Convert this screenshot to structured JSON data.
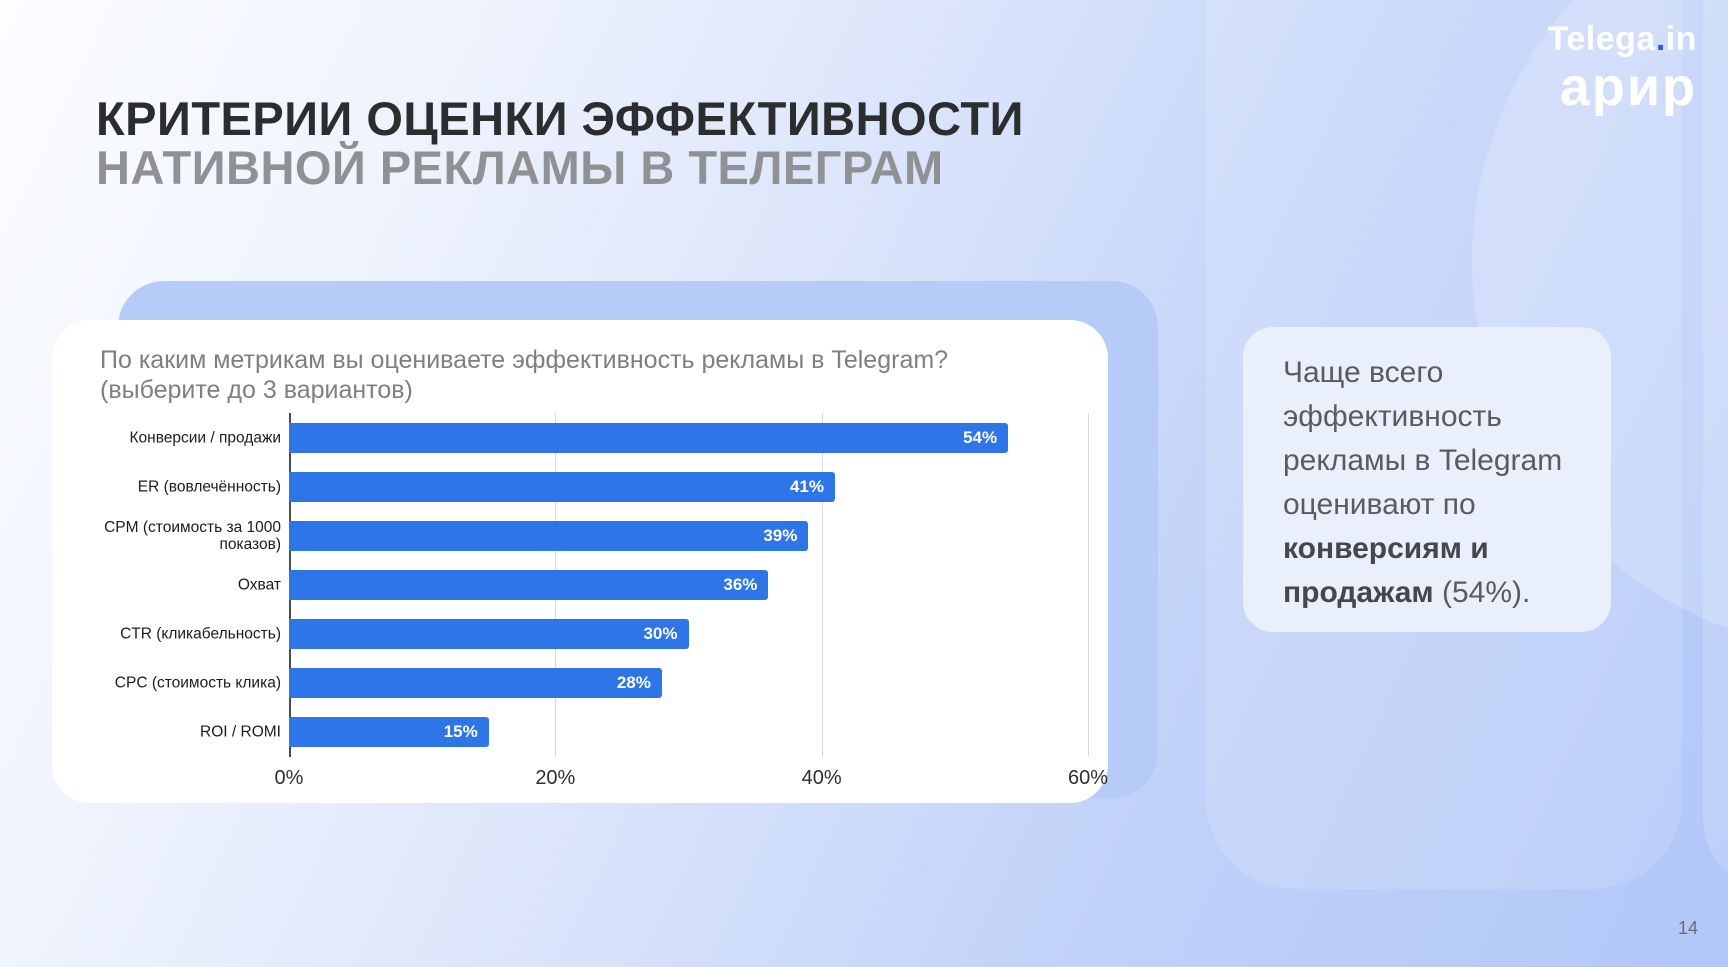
{
  "logo": {
    "brand": "Telega",
    "dot": ".",
    "tld": "in",
    "partner": "арир"
  },
  "title": {
    "line1": "КРИТЕРИИ ОЦЕНКИ ЭФФЕКТИВНОСТИ",
    "line2": "НАТИВНОЙ РЕКЛАМЫ В ТЕЛЕГРАМ"
  },
  "chart_card": {
    "question_line1": "По каким метрикам вы оцениваете эффективность рекламы в Telegram?",
    "question_line2": "(выберите до 3 вариантов)"
  },
  "chart_data": {
    "type": "bar",
    "orientation": "horizontal",
    "title": "По каким метрикам вы оцениваете эффективность рекламы в Telegram? (выберите до 3 вариантов)",
    "categories": [
      "Конверсии / продажи",
      "ER (вовлечённость)",
      "CPM (стоимость за 1000 показов)",
      "Охват",
      "CTR (кликабельность)",
      "CPC (стоимость клика)",
      "ROI / ROMI"
    ],
    "values": [
      54,
      41,
      39,
      36,
      30,
      28,
      15
    ],
    "value_labels": [
      "54%",
      "41%",
      "39%",
      "36%",
      "30%",
      "28%",
      "15%"
    ],
    "x_ticks": [
      "0%",
      "20%",
      "40%",
      "60%"
    ],
    "xlim": [
      0,
      60
    ],
    "grid": true,
    "value_label_position": "inside-end",
    "legend": "none"
  },
  "insight": {
    "segments": [
      {
        "text": "Чаще всего эффективность рекламы в Telegram оценивают по ",
        "bold": false
      },
      {
        "text": "конверсиям и продажам",
        "bold": true
      },
      {
        "text": " (54%).",
        "bold": false
      }
    ]
  },
  "page_number": "14",
  "colors": {
    "bar_blue": "#2e75e8",
    "logo_dot_blue": "#2b5fd9",
    "chart_backdrop_blue": "#b7cbf9",
    "title_dark": "#2c2d2f",
    "title_gray": "#8f9194",
    "insight_card_bg": "#e9f0fc",
    "gridline_gray": "#d9d9d9"
  }
}
